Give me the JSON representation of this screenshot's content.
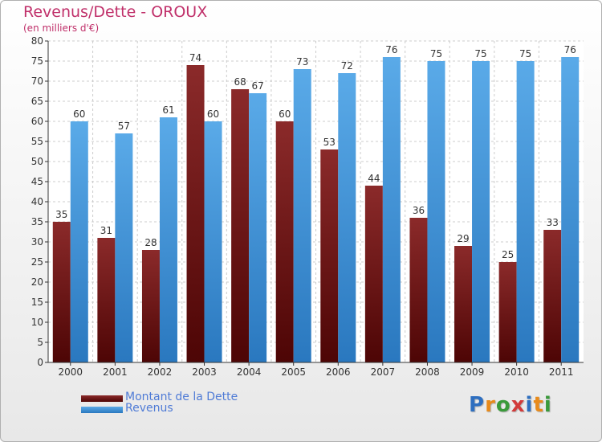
{
  "header": {
    "title": "Revenus/Dette - OROUX",
    "subtitle": "(en milliers d'€)"
  },
  "logo_text": "Proxiti",
  "colors": {
    "dette": "#7a1a1a",
    "revenus": "#3d8fd6"
  },
  "chart_data": {
    "type": "bar",
    "title": "Revenus/Dette - OROUX",
    "subtitle": "(en milliers d'€)",
    "categories": [
      "2000",
      "2001",
      "2002",
      "2003",
      "2004",
      "2005",
      "2006",
      "2007",
      "2008",
      "2009",
      "2010",
      "2011"
    ],
    "series": [
      {
        "name": "Montant de la Dette",
        "values": [
          35,
          31,
          28,
          74,
          68,
          60,
          53,
          44,
          36,
          29,
          25,
          33
        ]
      },
      {
        "name": "Revenus",
        "values": [
          60,
          57,
          61,
          60,
          67,
          73,
          72,
          76,
          75,
          75,
          75,
          76
        ]
      }
    ],
    "ylim": [
      0,
      80
    ],
    "yticks": [
      0,
      5,
      10,
      15,
      20,
      25,
      30,
      35,
      40,
      45,
      50,
      55,
      60,
      65,
      70,
      75,
      80
    ],
    "grid": true,
    "legend": "bottom-left"
  }
}
